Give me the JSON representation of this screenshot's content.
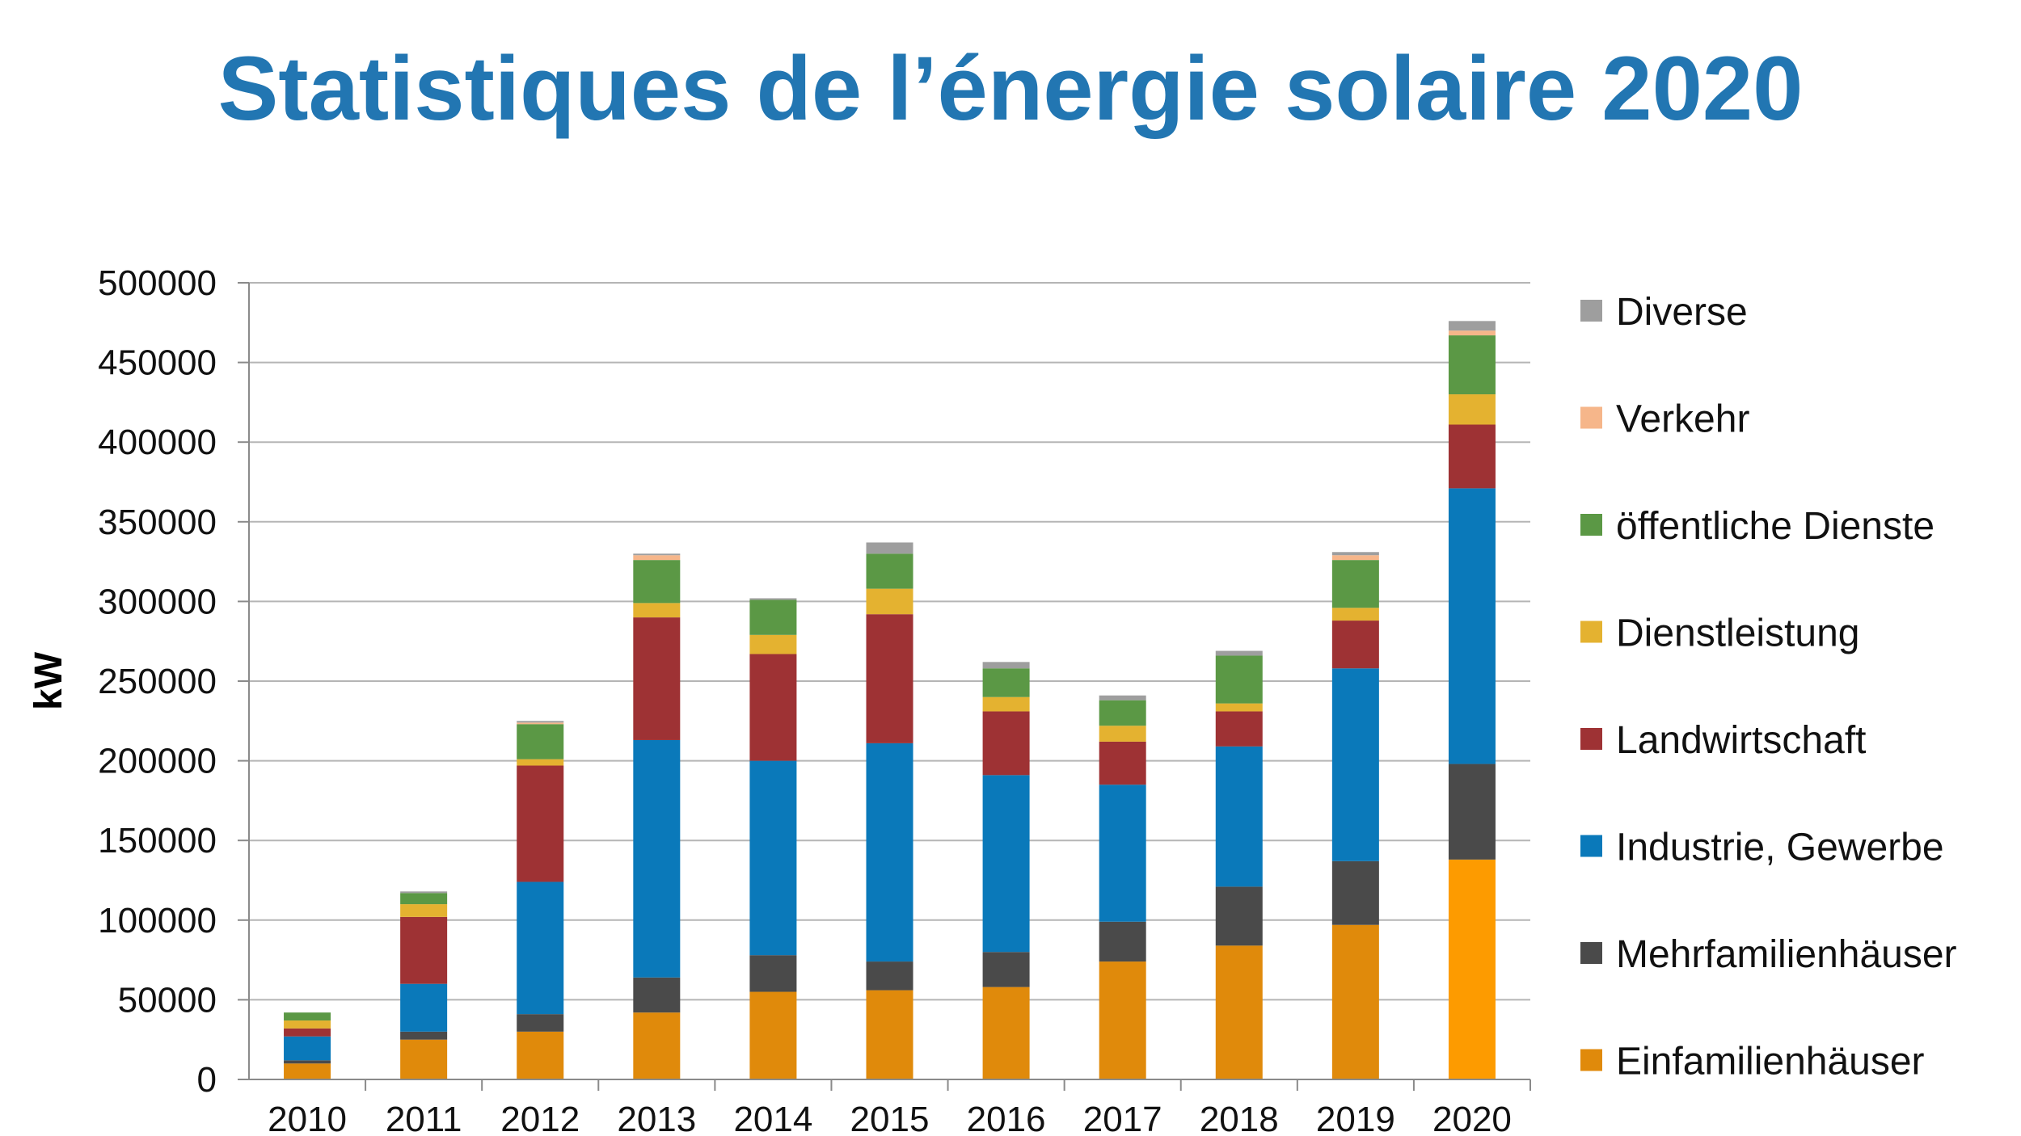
{
  "header": {
    "title": "Statistiques de l’énergie solaire 2020"
  },
  "chart_data": {
    "type": "bar",
    "stacked": true,
    "title": "",
    "xlabel": "",
    "ylabel": "kW",
    "ylim": [
      0,
      500000
    ],
    "yticks": [
      0,
      50000,
      100000,
      150000,
      200000,
      250000,
      300000,
      350000,
      400000,
      450000,
      500000
    ],
    "grid": true,
    "legend_position": "right",
    "categories": [
      "2010",
      "2011",
      "2012",
      "2013",
      "2014",
      "2015",
      "2016",
      "2017",
      "2018",
      "2019",
      "2020"
    ],
    "series": [
      {
        "name": "Einfamilienhäuser",
        "color": "#e08a0b",
        "values": [
          10000,
          25000,
          30000,
          42000,
          55000,
          56000,
          58000,
          74000,
          84000,
          97000,
          138000
        ]
      },
      {
        "name": "Mehrfamilienhäuser",
        "color": "#4a4a4a",
        "values": [
          2000,
          5000,
          11000,
          22000,
          23000,
          18000,
          22000,
          25000,
          37000,
          40000,
          60000
        ]
      },
      {
        "name": "Industrie, Gewerbe",
        "color": "#0a79ba",
        "values": [
          15000,
          30000,
          83000,
          149000,
          122000,
          137000,
          111000,
          86000,
          88000,
          121000,
          173000
        ]
      },
      {
        "name": "Landwirtschaft",
        "color": "#9e3234",
        "values": [
          5000,
          42000,
          73000,
          77000,
          67000,
          81000,
          40000,
          27000,
          22000,
          30000,
          40000
        ]
      },
      {
        "name": "Dienstleistung",
        "color": "#e4b230",
        "values": [
          5000,
          8000,
          4000,
          9000,
          12000,
          16000,
          9000,
          10000,
          5000,
          8000,
          19000
        ]
      },
      {
        "name": "öffentliche Dienste",
        "color": "#5b9845",
        "values": [
          5000,
          7000,
          22000,
          27000,
          22000,
          22000,
          18000,
          16000,
          30000,
          30000,
          37000
        ]
      },
      {
        "name": "Verkehr",
        "color": "#f6b68a",
        "values": [
          0,
          0,
          1000,
          3000,
          0,
          0,
          0,
          0,
          0,
          3000,
          3000
        ]
      },
      {
        "name": "Diverse",
        "color": "#9e9e9e",
        "values": [
          0,
          1000,
          1000,
          1000,
          1000,
          7000,
          4000,
          3000,
          3000,
          2000,
          6000
        ]
      }
    ],
    "highlight_color_2020_einfamilienhaeuser": "#fd9b00"
  }
}
